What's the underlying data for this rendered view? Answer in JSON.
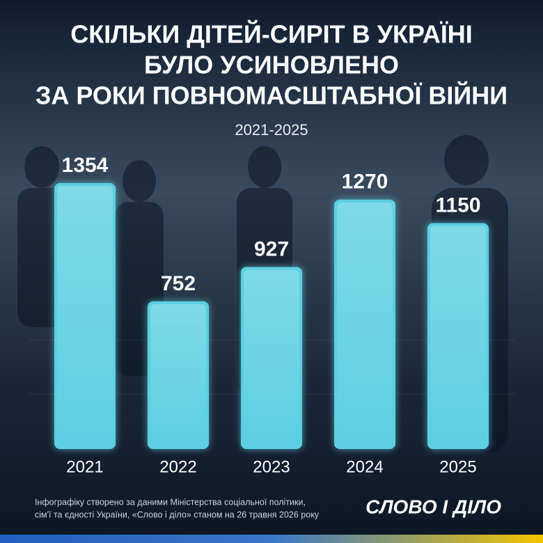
{
  "chart_data": {
    "type": "bar",
    "title": [
      "СКІЛЬКИ ДІТЕЙ-СИРІТ В УКРАЇНІ",
      "БУЛО УСИНОВЛЕНО",
      "ЗА РОКИ ПОВНОМАСШТАБНОЇ ВІЙНИ"
    ],
    "subtitle": "2021-2025",
    "categories": [
      "2021",
      "2022",
      "2023",
      "2024",
      "2025"
    ],
    "values": [
      1354,
      752,
      927,
      1270,
      1150
    ],
    "color": "#5ccfe2"
  },
  "footer": {
    "source": [
      "Інфографіку створено за даними Міністерства соціальної політики,",
      "сім'ї та єдності України, «Слово і діло» станом на 26 травня 2026 року"
    ],
    "logo": "СЛОВО І ДІЛО"
  }
}
